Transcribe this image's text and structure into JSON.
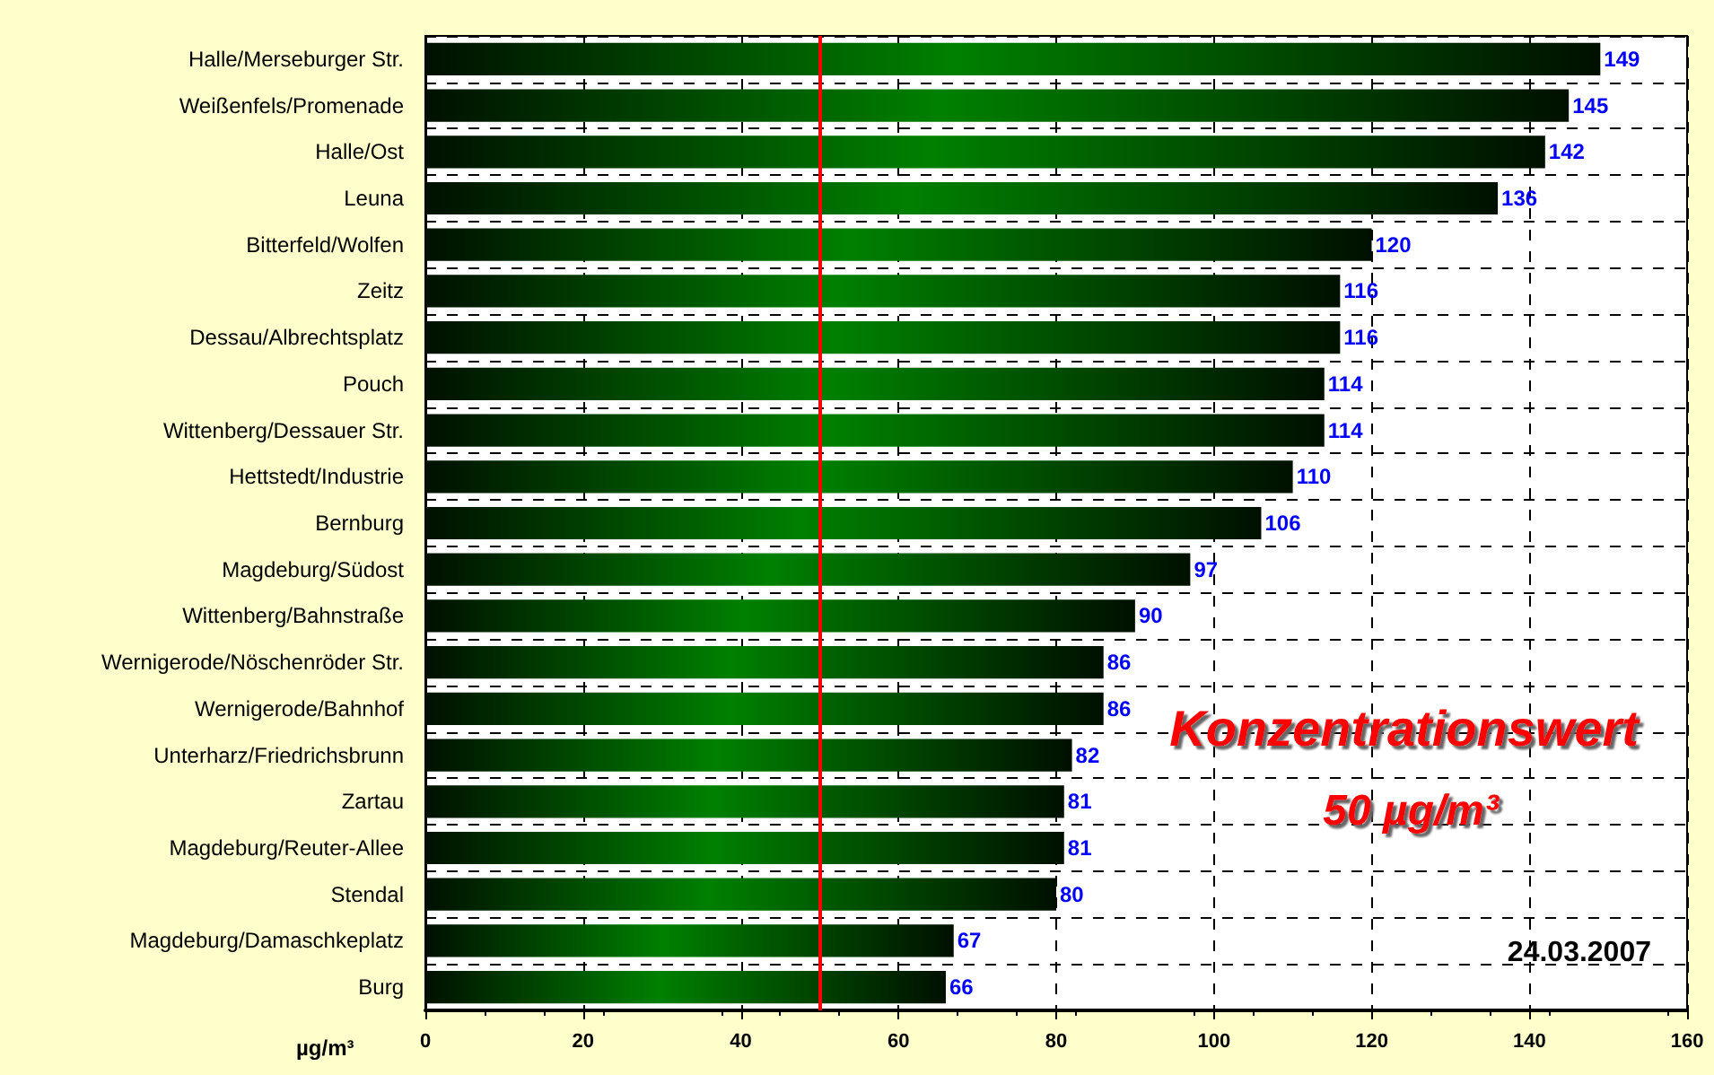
{
  "chart_data": {
    "type": "bar",
    "orientation": "horizontal",
    "categories": [
      "Halle/Merseburger Str.",
      "Weißenfels/Promenade",
      "Halle/Ost",
      "Leuna",
      "Bitterfeld/Wolfen",
      "Zeitz",
      "Dessau/Albrechtsplatz",
      "Pouch",
      "Wittenberg/Dessauer Str.",
      "Hettstedt/Industrie",
      "Bernburg",
      "Magdeburg/Südost",
      "Wittenberg/Bahnstraße",
      "Wernigerode/Nöschenröder Str.",
      "Wernigerode/Bahnhof",
      "Unterharz/Friedrichsbrunn",
      "Zartau",
      "Magdeburg/Reuter-Allee",
      "Stendal",
      "Magdeburg/Damaschkeplatz",
      "Burg"
    ],
    "values": [
      149,
      145,
      142,
      136,
      120,
      116,
      116,
      114,
      114,
      110,
      106,
      97,
      90,
      86,
      86,
      82,
      81,
      81,
      80,
      67,
      66
    ],
    "color": "#008000",
    "data_labels": true,
    "xlabel": "µg/m³",
    "xlim": [
      0,
      160
    ],
    "xticks": [
      0,
      20,
      40,
      60,
      80,
      100,
      120,
      140,
      160
    ],
    "grid": true,
    "ref_lines": [
      {
        "axis": "x",
        "value": 50,
        "label": "Konzentrationswert\n50 µg/m³",
        "color": "#ff0000",
        "line_style": "solid"
      }
    ],
    "annotations": [
      "24.03.2007"
    ]
  }
}
